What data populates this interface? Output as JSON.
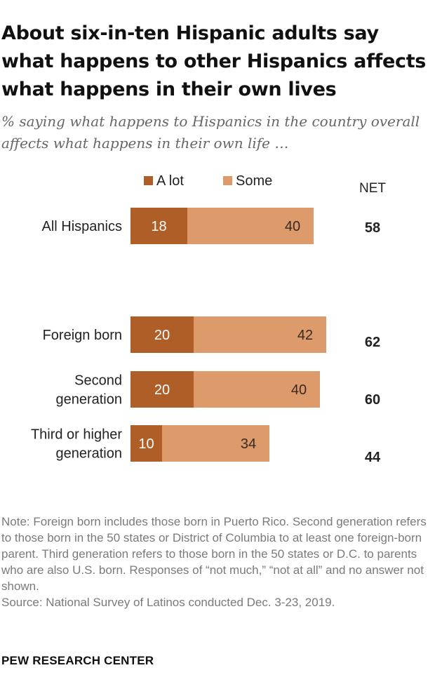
{
  "title": "About six-in-ten Hispanic adults say what happens to other Hispanics affects what happens in their own lives",
  "subtitle": "% saying what happens to Hispanics in the country overall affects what happens in their own life …",
  "colors": {
    "a_lot": "#b05e27",
    "some": "#dd9a6b"
  },
  "chart_data": {
    "type": "bar",
    "orientation": "horizontal",
    "stacked": true,
    "categories": [
      [
        "All Hispanics"
      ],
      [
        "Foreign born"
      ],
      [
        "Second",
        "generation"
      ],
      [
        "Third or higher",
        "generation"
      ]
    ],
    "series": [
      {
        "name": "A lot",
        "values": [
          18,
          20,
          20,
          10
        ]
      },
      {
        "name": "Some",
        "values": [
          40,
          42,
          40,
          34
        ]
      }
    ],
    "net_label": "NET",
    "net": [
      58,
      62,
      60,
      44
    ],
    "legend_position": "top",
    "xlim": [
      0,
      100
    ],
    "grid": false
  },
  "note": "Note: Foreign born includes those born in Puerto Rico. Second generation refers to those born in the 50 states or District of Columbia to at least one foreign-born parent. Third generation refers to those born in the 50 states or D.C. to parents who are also U.S. born. Responses of “not much,” “not at all” and no answer not shown.",
  "source": "Source: National Survey of Latinos conducted Dec. 3-23, 2019.",
  "credit": "PEW RESEARCH CENTER"
}
